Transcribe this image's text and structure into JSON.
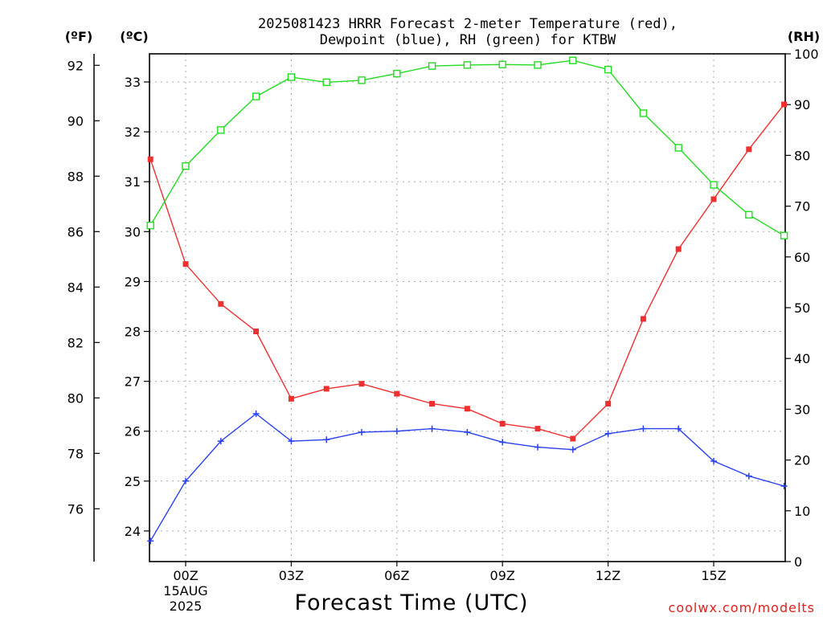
{
  "title": {
    "line1": "2025081423 HRRR Forecast 2-meter Temperature (red),",
    "line2": "Dewpoint (blue), RH (green) for KTBW"
  },
  "axis_units": {
    "left_f": "(ºF)",
    "left_c": "(ºC)",
    "right": "(RH)"
  },
  "xlabel": "Forecast Time (UTC)",
  "credit": "coolwx.com/modelts",
  "date_label": {
    "line1": "15AUG",
    "line2": "2025"
  },
  "colors": {
    "temperature": "#ee3030",
    "dewpoint": "#2840f0",
    "rh": "#20dd20"
  },
  "chart_data": {
    "type": "line",
    "x": [
      -1,
      0,
      1,
      2,
      3,
      4,
      5,
      6,
      7,
      8,
      9,
      10,
      11,
      12,
      13,
      14,
      15,
      16,
      17
    ],
    "xlim": [
      -1,
      17
    ],
    "x_ticks": [
      {
        "value": 0,
        "label": "00Z"
      },
      {
        "value": 3,
        "label": "03Z"
      },
      {
        "value": 6,
        "label": "06Z"
      },
      {
        "value": 9,
        "label": "09Z"
      },
      {
        "value": 12,
        "label": "12Z"
      },
      {
        "value": 15,
        "label": "15Z"
      }
    ],
    "y_fahrenheit": {
      "ticks": [
        76,
        78,
        80,
        82,
        84,
        86,
        88,
        90,
        92
      ]
    },
    "y_celsius": {
      "lim": [
        23.4,
        33.6
      ],
      "ticks": [
        24,
        25,
        26,
        27,
        28,
        29,
        30,
        31,
        32,
        33
      ]
    },
    "y_rh": {
      "lim": [
        0,
        100
      ],
      "ticks": [
        0,
        10,
        20,
        30,
        40,
        50,
        60,
        70,
        80,
        90,
        100
      ]
    },
    "grid": true,
    "series": [
      {
        "name": "Temperature",
        "axis": "celsius",
        "marker": "filled-square",
        "values": [
          31.45,
          29.35,
          28.55,
          28.0,
          26.65,
          26.85,
          26.95,
          26.75,
          26.55,
          26.45,
          26.15,
          26.05,
          25.85,
          26.55,
          28.25,
          29.65,
          30.65,
          31.65,
          32.55
        ]
      },
      {
        "name": "Dewpoint",
        "axis": "celsius",
        "marker": "plus",
        "values": [
          23.8,
          25.0,
          25.8,
          26.35,
          25.8,
          25.83,
          25.98,
          26.0,
          26.05,
          25.98,
          25.78,
          25.68,
          25.63,
          25.95,
          26.05,
          26.05,
          25.4,
          25.1,
          24.9
        ]
      },
      {
        "name": "RH",
        "axis": "rh",
        "marker": "open-square",
        "values": [
          66.2,
          77.9,
          85.0,
          91.6,
          95.4,
          94.4,
          94.8,
          96.1,
          97.6,
          97.8,
          97.9,
          97.8,
          98.7,
          96.9,
          88.3,
          81.5,
          74.2,
          68.3,
          64.2
        ]
      }
    ]
  }
}
